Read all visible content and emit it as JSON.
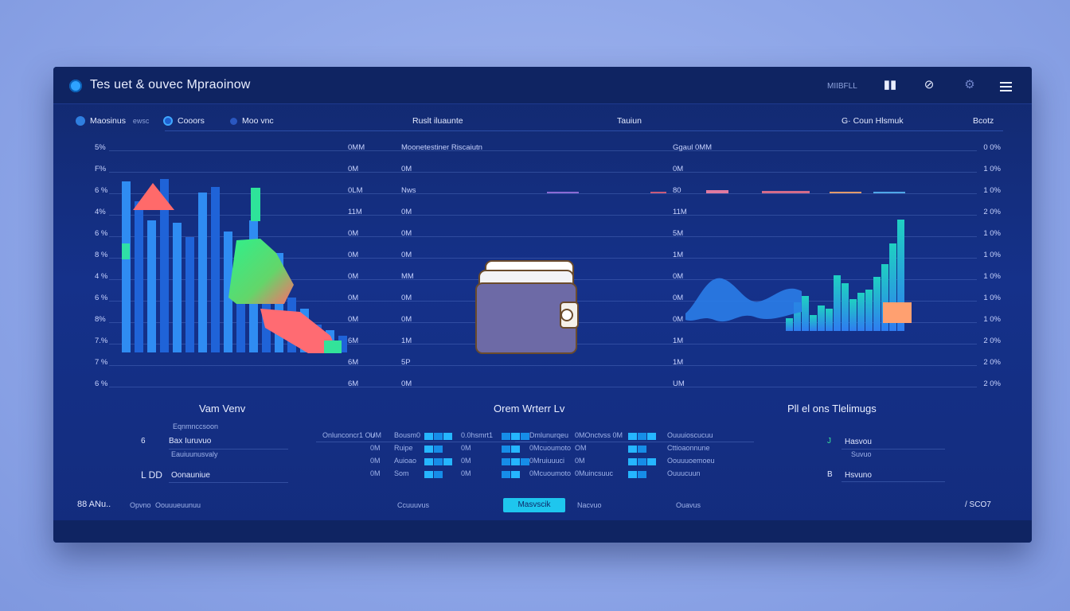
{
  "header": {
    "title": "Tes uet & ouvec Mpraoinow",
    "small_text": "MIIBFLL",
    "icons": [
      "bars-icon",
      "tag-icon",
      "shield-icon",
      "menu-icon"
    ]
  },
  "nav": {
    "items": [
      {
        "label": "Maosinus",
        "extra": "ewsc"
      },
      {
        "label": "Cooors"
      },
      {
        "label": "Moo vnc"
      },
      {
        "label": "Ruslt iluaunte"
      },
      {
        "label": "Tauiun"
      },
      {
        "label": "Coun Hlsmuk",
        "prefix": "G·"
      },
      {
        "label": "Bcotz"
      }
    ]
  },
  "left_axis": {
    "labels": [
      "5%",
      "F%",
      "6 %",
      "4%",
      "6 %",
      "8 %",
      "4 %",
      "6 %",
      "8%",
      "7.%",
      "7 %",
      "6 %"
    ]
  },
  "mid_axis_1": {
    "labels": [
      "0MM",
      "0M",
      "0LM",
      "11M",
      "0M",
      "0M",
      "0M",
      "0M",
      "0M",
      "6M",
      "6M",
      "6M"
    ]
  },
  "mid_axis_2": {
    "labels": [
      "Moonetestiner Riscaiutn",
      "0M",
      "Nws",
      "0M",
      "0M",
      "0M",
      "MM",
      "0M",
      "0M",
      "1M",
      "5P",
      "0M"
    ]
  },
  "mid_axis_3": {
    "labels": [
      "Ggaul 0MM",
      "0M",
      "80",
      "11M",
      "5M",
      "1M",
      "0M",
      "0M",
      "0M",
      "1M",
      "1M",
      "UM"
    ]
  },
  "right_axis": {
    "labels": [
      "0 0%",
      "1 0%",
      "1 0%",
      "2 0%",
      "1 0%",
      "1 0%",
      "1 0%",
      "1 0%",
      "1 0%",
      "2 0%",
      "2 0%",
      "2 0%"
    ]
  },
  "left_chart": {
    "series": [
      "blue bars",
      "green-red area"
    ],
    "bar_values": [
      62,
      55,
      48,
      63,
      47,
      42,
      58,
      60,
      44,
      40,
      48,
      28,
      36,
      20,
      16,
      10,
      8,
      6
    ],
    "colors": {
      "bar": "#1f63d8",
      "bar_light": "#2f8cf2",
      "green": "#29e28b",
      "red": "#ff5f6d"
    }
  },
  "right_chart": {
    "bar_values": [
      8,
      18,
      22,
      10,
      16,
      14,
      35,
      30,
      20,
      24,
      26,
      34,
      42,
      55,
      70
    ],
    "colors": {
      "bar": "#1fd0c2",
      "accent": "#2e7cf0",
      "orange": "#ffa070"
    }
  },
  "wallet": {
    "icon": "wallet-icon"
  },
  "sections": {
    "left": {
      "title": "Vam Venv",
      "rows": [
        {
          "num": "6",
          "label": "Bax Iuruvuo",
          "sub": "Eqnmnccsoon"
        },
        {
          "num": "",
          "label": "",
          "sub": "Eauiuunusvaly"
        },
        {
          "num": "L DD",
          "label": "Oonauniue",
          "sub": ""
        }
      ]
    },
    "middle": {
      "title": "Orem Wrterr Lv",
      "rows": [
        {
          "a": "Onlunconcr1 Ou",
          "b": "UM",
          "c": "Bousm0",
          "d": "0.0hsmrt1",
          "e": "Dmlunurqeu",
          "f": "0MOnctvss 0M",
          "g": "Ouuuioscucuu"
        },
        {
          "a": "",
          "b": "0M",
          "c": "Ruipe",
          "d": "0M",
          "e": "0Mcuoumoto",
          "f": "OM",
          "g": "Cttioaonnune"
        },
        {
          "a": "",
          "b": "0M",
          "c": "Auioao",
          "d": "0M",
          "e": "0Mruiuuuci",
          "f": "0M",
          "g": "Oouuuoemoeu"
        },
        {
          "a": "",
          "b": "0M",
          "c": "Som",
          "d": "0M",
          "e": "0Mcuoumoto",
          "f": "0Muincsuuc",
          "g": "Ouuucuun"
        }
      ]
    },
    "right": {
      "title": "Pll el ons Tlelimugs",
      "rows": [
        {
          "num": "J",
          "label": "Hasvou",
          "sub": "Suvuo"
        },
        {
          "num": "B",
          "label": "Hsvuno",
          "sub": ""
        }
      ]
    }
  },
  "footer": {
    "left_label": "88 ANu..",
    "left_small": "Opvno",
    "left_small2": "Oouuueuunuu",
    "mid_small": "Ccuuuvus",
    "cta": "Masvscik",
    "mid_small2": "Nacvuo",
    "right_small": "Ouavus",
    "right_label": "/   SCO7"
  }
}
